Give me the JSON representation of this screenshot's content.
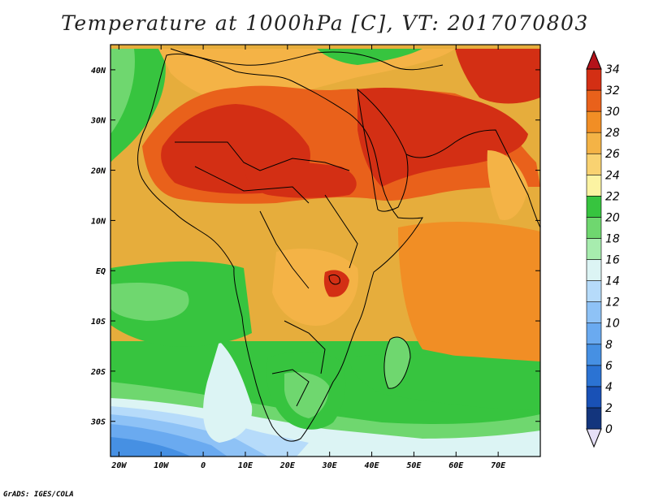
{
  "title": "Temperature at 1000hPa [C], VT: 2017070803",
  "footer": "GrADS: IGES/COLA",
  "map": {
    "lon_range": [
      -22,
      80
    ],
    "lat_range": [
      -37,
      45
    ],
    "lon_ticks": [
      {
        "value": -20,
        "label": "20W"
      },
      {
        "value": -10,
        "label": "10W"
      },
      {
        "value": 0,
        "label": "0"
      },
      {
        "value": 10,
        "label": "10E"
      },
      {
        "value": 20,
        "label": "20E"
      },
      {
        "value": 30,
        "label": "30E"
      },
      {
        "value": 40,
        "label": "40E"
      },
      {
        "value": 50,
        "label": "50E"
      },
      {
        "value": 60,
        "label": "60E"
      },
      {
        "value": 70,
        "label": "70E"
      }
    ],
    "lat_ticks": [
      {
        "value": 40,
        "label": "40N"
      },
      {
        "value": 30,
        "label": "30N"
      },
      {
        "value": 20,
        "label": "20N"
      },
      {
        "value": 10,
        "label": "10N"
      },
      {
        "value": 0,
        "label": "EQ"
      },
      {
        "value": -10,
        "label": "10S"
      },
      {
        "value": -20,
        "label": "20S"
      },
      {
        "value": -30,
        "label": "30S"
      }
    ],
    "base_fill": "#e6ad3c"
  },
  "colorbar": {
    "levels": [
      "0",
      "2",
      "4",
      "6",
      "8",
      "10",
      "12",
      "14",
      "16",
      "18",
      "20",
      "22",
      "24",
      "26",
      "28",
      "30",
      "32",
      "34"
    ],
    "colors": [
      "#13357d",
      "#1951b6",
      "#2b73d3",
      "#4690e3",
      "#6aaaf0",
      "#8ec2f6",
      "#b6dbfa",
      "#dcf4f4",
      "#a7ecae",
      "#6fd76f",
      "#37c43f",
      "#fcf3a2",
      "#f9d271",
      "#f4b346",
      "#f18e25",
      "#e9611b",
      "#d32f14",
      "#b4121a"
    ]
  }
}
